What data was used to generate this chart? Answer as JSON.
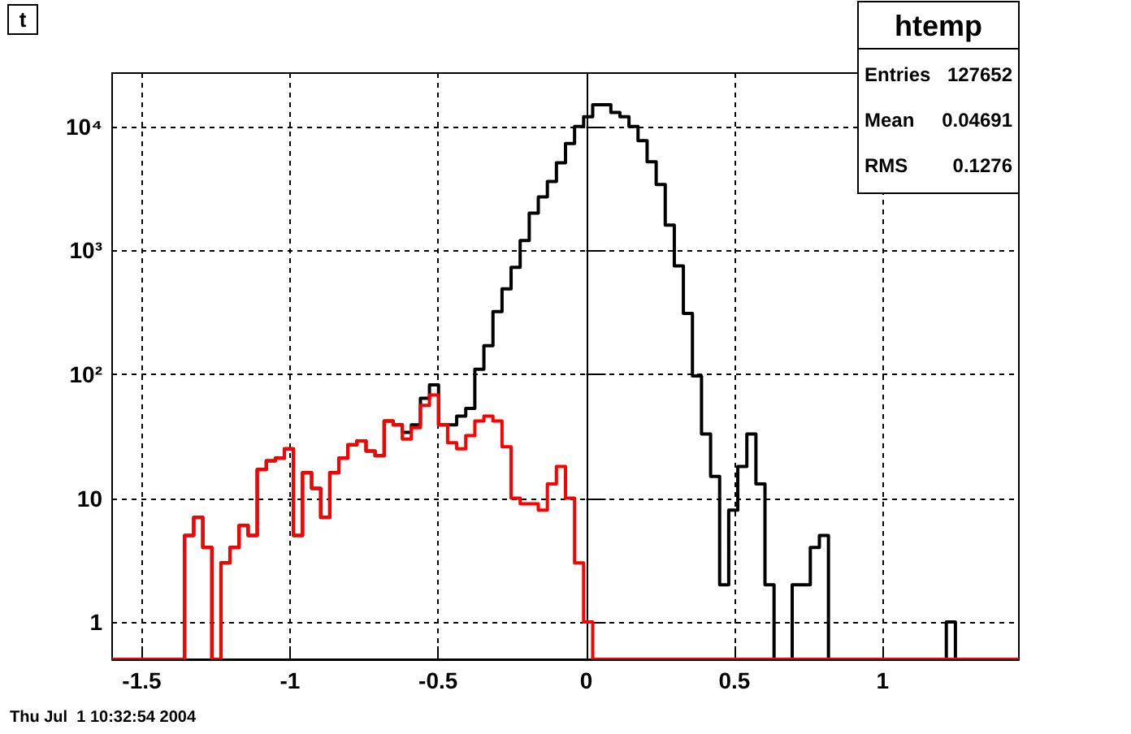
{
  "chart_data": {
    "type": "histogram",
    "title": "t",
    "bins": [
      -1.6,
      -1.5694,
      -1.5388,
      -1.5082,
      -1.4776,
      -1.447,
      -1.4164,
      -1.3858,
      -1.3552,
      -1.3246,
      -1.294,
      -1.2634,
      -1.2328,
      -1.2022,
      -1.1716,
      -1.141,
      -1.1104,
      -1.0798,
      -1.0492,
      -1.0186,
      -0.988,
      -0.9574,
      -0.9268,
      -0.8962,
      -0.8656,
      -0.835,
      -0.8044,
      -0.7738,
      -0.7432,
      -0.7126,
      -0.682,
      -0.6514,
      -0.6208,
      -0.5902,
      -0.5596,
      -0.529,
      -0.4984,
      -0.4678,
      -0.4372,
      -0.4066,
      -0.376,
      -0.3454,
      -0.3148,
      -0.2842,
      -0.2536,
      -0.223,
      -0.1924,
      -0.1618,
      -0.1312,
      -0.1006,
      -0.07,
      -0.0394,
      -0.0088,
      0.0218,
      0.0524,
      0.083,
      0.1136,
      0.1442,
      0.1748,
      0.2054,
      0.236,
      0.2666,
      0.2972,
      0.3278,
      0.3584,
      0.389,
      0.4196,
      0.4502,
      0.4808,
      0.5114,
      0.542,
      0.5726,
      0.6032,
      0.6338,
      0.6644,
      0.695,
      0.7256,
      0.7562,
      0.7868,
      0.8174,
      0.848,
      0.8786,
      0.9092,
      0.9398,
      0.9704,
      1.001,
      1.0316,
      1.0622,
      1.0928,
      1.1234,
      1.154,
      1.1846,
      1.2152,
      1.2458,
      1.2764,
      1.307,
      1.3376,
      1.3682,
      1.3988,
      1.4294,
      1.46
    ],
    "series": [
      {
        "color": "#000000",
        "values": [
          null,
          null,
          null,
          null,
          null,
          null,
          null,
          null,
          5,
          7,
          4,
          null,
          3,
          4,
          6,
          5,
          17,
          20,
          21,
          25,
          5,
          16,
          12,
          7,
          16,
          21,
          27,
          29,
          24,
          22,
          42,
          39,
          34,
          39,
          64,
          82,
          39,
          39,
          46,
          53,
          110,
          170,
          320,
          490,
          730,
          1200,
          2000,
          2700,
          3600,
          5100,
          7300,
          10000,
          12000,
          15000,
          15000,
          13000,
          12000,
          10000,
          7700,
          5200,
          3400,
          1600,
          750,
          310,
          97,
          33,
          15,
          2,
          8,
          18,
          33,
          13,
          2,
          null,
          null,
          2,
          2,
          4,
          5,
          null,
          null,
          null,
          null,
          null,
          null,
          null,
          null,
          null,
          null,
          null,
          null,
          null,
          1,
          null,
          null,
          null,
          null,
          null,
          null,
          null
        ]
      },
      {
        "color": "#ff0000",
        "values": [
          null,
          null,
          null,
          null,
          null,
          null,
          null,
          null,
          5,
          7,
          4,
          null,
          3,
          4,
          6,
          5,
          17,
          20,
          21,
          25,
          5,
          16,
          12,
          7,
          16,
          21,
          27,
          29,
          24,
          22,
          42,
          39,
          30,
          37,
          56,
          68,
          39,
          28,
          25,
          32,
          42,
          46,
          42,
          26,
          10,
          9,
          9,
          8,
          13,
          18,
          10,
          3,
          1,
          null,
          null,
          null,
          null,
          null,
          null,
          null,
          null,
          null,
          null,
          null,
          null,
          null,
          null,
          null,
          null,
          null,
          null,
          null,
          null,
          null,
          null,
          null,
          null,
          null,
          null,
          null,
          null,
          null,
          null,
          null,
          null,
          null,
          null,
          null,
          null,
          null,
          null,
          null,
          null,
          null,
          null,
          null,
          null,
          null,
          null,
          null
        ]
      }
    ],
    "xlim": [
      -1.6,
      1.46
    ],
    "xticks": [
      -1.5,
      -1,
      -0.5,
      0,
      0.5,
      1
    ],
    "ylim": [
      0.5,
      27000
    ],
    "yticks": [
      1,
      10,
      {
        "value": 100,
        "label": "10²"
      },
      {
        "value": 1000,
        "label": "10³"
      },
      {
        "value": 10000,
        "label": "10⁴"
      }
    ],
    "log": "y",
    "grid": true,
    "annotations": [
      "htemp",
      "Entries 127652",
      "Mean 0.04691",
      "RMS 0.1276",
      "Thu Jul  1 10:32:54 2004"
    ]
  }
}
